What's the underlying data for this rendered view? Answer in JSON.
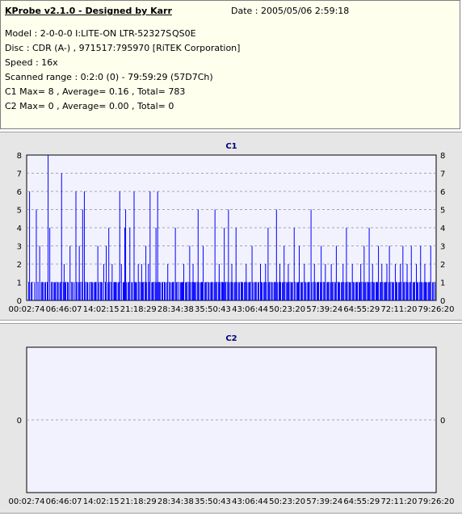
{
  "header": {
    "title": "KProbe v2.1.0 - Designed by Karr",
    "date": "Date : 2005/05/06 2:59:18",
    "model": "Model : 2-0-0-0 I:LITE-ON LTR-52327S",
    "firmware": "QS0E",
    "disc": "Disc : CDR (A-) , 971517:795970 [RiTEK Corporation]",
    "speed": "Speed : 16x",
    "range": "Scanned range : 0:2:0 (0) - 79:59:29 (57D7Ch)",
    "c1_stats": "C1 Max= 8 , Average= 0.16 , Total= 783",
    "c2_stats": "C2 Max= 0 , Average= 0.00 , Total= 0"
  },
  "colors": {
    "bar": "#0000ff",
    "plot_bg": "#f2f2ff",
    "panel_bg": "#e6e6e6",
    "info_bg": "#ffffee",
    "title": "#000080"
  },
  "chart_data": [
    {
      "type": "bar",
      "title": "C1",
      "ylim": [
        0,
        8
      ],
      "yticks": [
        "0",
        "1",
        "2",
        "3",
        "4",
        "5",
        "6",
        "7",
        "8"
      ],
      "xticks": [
        "00:02:74",
        "06:46:07",
        "14:02:15",
        "21:18:29",
        "28:34:38",
        "35:50:43",
        "43:06:44",
        "50:23:20",
        "57:39:24",
        "64:55:29",
        "72:11:20",
        "79:26:20"
      ],
      "x_range_seconds": [
        2,
        4799
      ],
      "values": [
        0,
        1,
        6,
        0,
        1,
        1,
        0,
        0,
        1,
        0,
        5,
        0,
        1,
        0,
        3,
        0,
        1,
        1,
        1,
        0,
        1,
        1,
        0,
        1,
        8,
        0,
        4,
        0,
        1,
        1,
        0,
        1,
        1,
        1,
        0,
        1,
        1,
        0,
        1,
        1,
        7,
        0,
        1,
        2,
        1,
        1,
        0,
        1,
        1,
        0,
        3,
        0,
        1,
        1,
        0,
        1,
        0,
        6,
        1,
        0,
        1,
        3,
        1,
        0,
        1,
        5,
        0,
        6,
        1,
        0,
        1,
        1,
        0,
        1,
        0,
        1,
        1,
        1,
        0,
        1,
        1,
        1,
        0,
        3,
        1,
        0,
        1,
        1,
        1,
        0,
        2,
        0,
        1,
        3,
        0,
        1,
        4,
        1,
        0,
        1,
        2,
        0,
        1,
        1,
        1,
        1,
        0,
        1,
        1,
        6,
        0,
        2,
        0,
        1,
        1,
        4,
        5,
        1,
        0,
        1,
        1,
        4,
        0,
        1,
        1,
        0,
        6,
        1,
        1,
        1,
        0,
        2,
        1,
        0,
        1,
        2,
        1,
        1,
        0,
        1,
        3,
        1,
        0,
        2,
        1,
        6,
        0,
        1,
        1,
        1,
        0,
        1,
        4,
        1,
        6,
        1,
        1,
        1,
        0,
        1,
        1,
        0,
        1,
        1,
        0,
        1,
        2,
        0,
        1,
        1,
        0,
        1,
        1,
        1,
        0,
        4,
        1,
        1,
        0,
        1,
        0,
        1,
        1,
        1,
        1,
        2,
        0,
        1,
        1,
        1,
        0,
        1,
        3,
        1,
        0,
        1,
        2,
        1,
        1,
        1,
        0,
        1,
        5,
        1,
        0,
        1,
        1,
        1,
        3,
        0,
        1,
        1,
        1,
        0,
        1,
        1,
        0,
        1,
        1,
        1,
        0,
        1,
        5,
        1,
        1,
        0,
        1,
        2,
        1,
        0,
        1,
        1,
        1,
        4,
        1,
        1,
        0,
        1,
        5,
        1,
        0,
        1,
        2,
        1,
        0,
        1,
        1,
        4,
        1,
        0,
        1,
        1,
        0,
        1,
        1,
        1,
        0,
        1,
        1,
        2,
        1,
        0,
        1,
        1,
        1,
        0,
        3,
        1,
        0,
        1,
        1,
        1,
        0,
        1,
        1,
        0,
        2,
        1,
        1,
        0,
        1,
        1,
        2,
        1,
        0,
        4,
        1,
        1,
        0,
        1,
        1,
        0,
        1,
        1,
        1,
        5,
        1,
        0,
        1,
        2,
        1,
        0,
        1,
        1,
        3,
        1,
        0,
        1,
        1,
        2,
        1,
        0,
        1,
        1,
        1,
        0,
        4,
        1,
        0,
        1,
        1,
        1,
        3,
        0,
        1,
        1,
        1,
        0,
        2,
        1,
        1,
        0,
        1,
        1,
        1,
        0,
        5,
        1,
        0,
        1,
        2,
        1,
        0,
        1,
        1,
        1,
        0,
        1,
        3,
        1,
        0,
        1,
        1,
        2,
        0,
        1,
        1,
        1,
        0,
        1,
        2,
        1,
        1,
        0,
        1,
        1,
        3,
        0,
        1,
        1,
        1,
        0,
        1,
        1,
        2,
        1,
        0,
        1,
        4,
        1,
        0,
        1,
        1,
        1,
        0,
        2,
        1,
        1,
        0,
        1,
        1,
        1,
        0,
        1,
        1,
        2,
        1,
        0,
        1,
        3,
        1,
        1,
        0,
        1,
        1,
        4,
        1,
        0,
        1,
        2,
        1,
        1,
        0,
        1,
        1,
        1,
        3,
        0,
        1,
        1,
        2,
        1,
        0,
        1,
        1,
        1,
        2,
        0,
        1,
        3,
        1,
        0,
        1,
        1,
        1,
        0,
        2,
        1,
        1,
        0,
        1,
        1,
        2,
        1,
        0,
        3,
        1,
        1,
        0,
        1,
        2,
        1,
        0,
        1,
        1,
        3,
        0,
        1,
        1,
        1,
        0,
        2,
        1,
        1,
        0,
        1,
        3,
        1,
        1,
        0,
        1,
        2,
        1,
        1,
        0,
        1,
        1,
        1,
        3,
        0,
        1,
        1,
        0,
        1
      ]
    },
    {
      "type": "bar",
      "title": "C2",
      "ylim": [
        -1,
        1
      ],
      "yticks": [
        "0"
      ],
      "xticks": [
        "00:02:74",
        "06:46:07",
        "14:02:15",
        "21:18:29",
        "28:34:38",
        "35:50:43",
        "43:06:44",
        "50:23:20",
        "57:39:24",
        "64:55:29",
        "72:11:20",
        "79:26:20"
      ],
      "values": []
    }
  ]
}
